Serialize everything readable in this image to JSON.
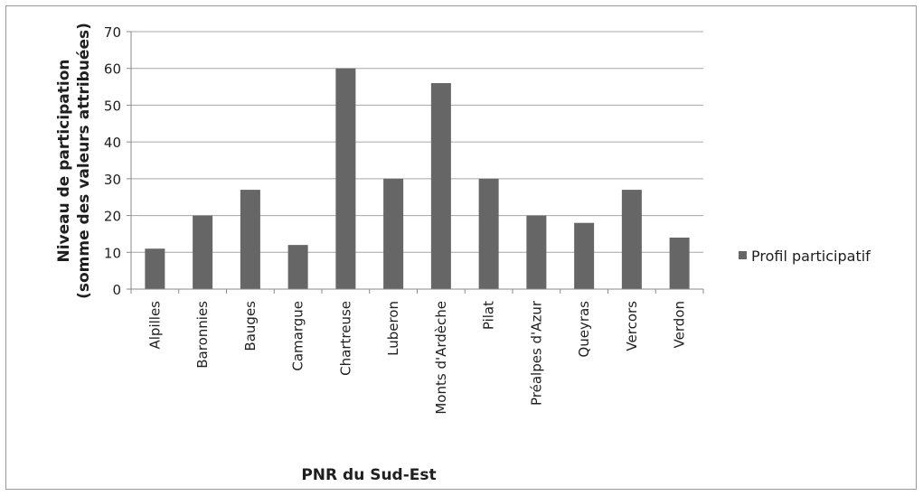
{
  "chart_data": {
    "type": "bar",
    "title": "",
    "xlabel": "PNR du Sud-Est",
    "ylabel_line1": "Niveau  de participation",
    "ylabel_line2": "(somme des valeurs attribuées)",
    "categories": [
      "Alpilles",
      "Baronnies",
      "Bauges",
      "Camargue",
      "Chartreuse",
      "Luberon",
      "Monts d'Ardèche",
      "Pilat",
      "Préalpes d'Azur",
      "Queyras",
      "Vercors",
      "Verdon"
    ],
    "series": [
      {
        "name": "Profil participatif",
        "values": [
          11,
          20,
          27,
          12,
          60,
          30,
          56,
          30,
          20,
          18,
          27,
          14
        ],
        "color": "#666666"
      }
    ],
    "ylim": [
      0,
      70
    ],
    "yticks": [
      0,
      10,
      20,
      30,
      40,
      50,
      60,
      70
    ],
    "grid": true,
    "legend_position": "right"
  }
}
